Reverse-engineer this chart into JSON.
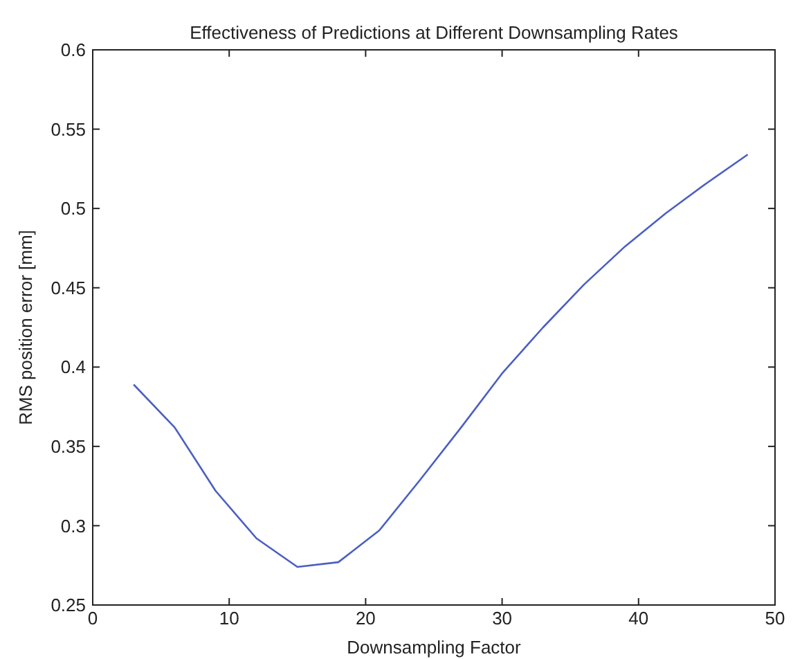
{
  "chart_data": {
    "type": "line",
    "title": "Effectiveness of Predictions at Different Downsampling Rates",
    "xlabel": "Downsampling Factor",
    "ylabel": "RMS position error [mm]",
    "x": [
      3,
      6,
      9,
      12,
      15,
      18,
      21,
      24,
      27,
      30,
      33,
      36,
      39,
      42,
      45,
      48
    ],
    "series": [
      {
        "color": "#4a5fc1",
        "values": [
          0.389,
          0.362,
          0.322,
          0.292,
          0.274,
          0.277,
          0.297,
          0.329,
          0.362,
          0.396,
          0.425,
          0.452,
          0.476,
          0.497,
          0.516,
          0.534
        ]
      }
    ],
    "xlim": [
      0,
      50
    ],
    "xticks": [
      0,
      10,
      20,
      30,
      40,
      50
    ],
    "ylim": [
      0.25,
      0.6
    ],
    "yticks": [
      0.25,
      0.3,
      0.35,
      0.4,
      0.45,
      0.5,
      0.55,
      0.6
    ],
    "grid": false
  }
}
